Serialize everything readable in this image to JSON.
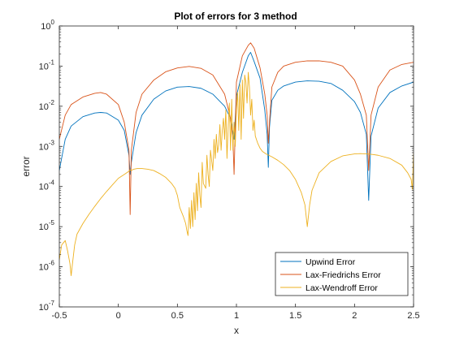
{
  "chart_data": {
    "type": "line",
    "title": "Plot of errors for 3 method",
    "xlabel": "x",
    "ylabel": "error",
    "xlim": [
      -0.5,
      2.5
    ],
    "ylim": [
      1e-07,
      1
    ],
    "yscale": "log",
    "grid": false,
    "legend_position": "bottom-right",
    "x_ticks": [
      {
        "value": -0.5,
        "label": "-0.5"
      },
      {
        "value": 0,
        "label": "0"
      },
      {
        "value": 0.5,
        "label": "0.5"
      },
      {
        "value": 1,
        "label": "1"
      },
      {
        "value": 1.5,
        "label": "1.5"
      },
      {
        "value": 2,
        "label": "2"
      },
      {
        "value": 2.5,
        "label": "2.5"
      }
    ],
    "y_ticks": [
      {
        "value": 1e-07,
        "base": "10",
        "exp": "-7"
      },
      {
        "value": 1e-06,
        "base": "10",
        "exp": "-6"
      },
      {
        "value": 1e-05,
        "base": "10",
        "exp": "-5"
      },
      {
        "value": 0.0001,
        "base": "10",
        "exp": "-4"
      },
      {
        "value": 0.001,
        "base": "10",
        "exp": "-3"
      },
      {
        "value": 0.01,
        "base": "10",
        "exp": "-2"
      },
      {
        "value": 0.1,
        "base": "10",
        "exp": "-1"
      },
      {
        "value": 1,
        "base": "10",
        "exp": "0"
      }
    ],
    "series": [
      {
        "name": "Upwind Error",
        "color": "#0072BD",
        "x": [
          -0.5,
          -0.45,
          -0.4,
          -0.3,
          -0.2,
          -0.15,
          -0.1,
          0.0,
          0.05,
          0.09,
          0.1,
          0.11,
          0.15,
          0.2,
          0.3,
          0.4,
          0.5,
          0.6,
          0.7,
          0.8,
          0.9,
          0.95,
          0.98,
          1.0,
          1.05,
          1.1,
          1.12,
          1.15,
          1.2,
          1.24,
          1.26,
          1.27,
          1.28,
          1.3,
          1.35,
          1.4,
          1.5,
          1.6,
          1.7,
          1.8,
          1.9,
          2.0,
          2.05,
          2.1,
          2.12,
          2.14,
          2.2,
          2.3,
          2.4,
          2.5
        ],
        "y": [
          0.00025,
          0.0015,
          0.0032,
          0.0055,
          0.0068,
          0.007,
          0.0068,
          0.0045,
          0.0025,
          0.0006,
          0.0002,
          0.0004,
          0.0022,
          0.006,
          0.015,
          0.024,
          0.03,
          0.031,
          0.028,
          0.02,
          0.01,
          0.005,
          0.0015,
          0.018,
          0.07,
          0.18,
          0.22,
          0.13,
          0.05,
          0.008,
          0.002,
          0.0003,
          0.003,
          0.014,
          0.025,
          0.032,
          0.04,
          0.043,
          0.042,
          0.037,
          0.025,
          0.013,
          0.007,
          0.002,
          4.5e-05,
          0.0018,
          0.009,
          0.022,
          0.032,
          0.04
        ]
      },
      {
        "name": "Lax-Friedrichs Error",
        "color": "#D95319",
        "x": [
          -0.5,
          -0.45,
          -0.4,
          -0.3,
          -0.2,
          -0.15,
          -0.1,
          0.0,
          0.05,
          0.09,
          0.1,
          0.11,
          0.15,
          0.2,
          0.3,
          0.4,
          0.5,
          0.6,
          0.7,
          0.8,
          0.9,
          0.95,
          0.97,
          0.98,
          1.0,
          1.05,
          1.1,
          1.12,
          1.15,
          1.2,
          1.24,
          1.26,
          1.27,
          1.28,
          1.3,
          1.35,
          1.4,
          1.5,
          1.6,
          1.7,
          1.8,
          1.9,
          2.0,
          2.05,
          2.1,
          2.12,
          2.14,
          2.2,
          2.3,
          2.4,
          2.5
        ],
        "y": [
          0.0015,
          0.006,
          0.011,
          0.017,
          0.021,
          0.022,
          0.02,
          0.011,
          0.004,
          0.0008,
          2e-05,
          0.0008,
          0.007,
          0.02,
          0.045,
          0.072,
          0.09,
          0.098,
          0.088,
          0.06,
          0.02,
          0.005,
          0.0015,
          0.0002,
          0.04,
          0.18,
          0.33,
          0.38,
          0.28,
          0.09,
          0.02,
          0.006,
          0.0012,
          0.004,
          0.03,
          0.07,
          0.1,
          0.125,
          0.135,
          0.135,
          0.125,
          0.1,
          0.045,
          0.02,
          0.006,
          0.00025,
          0.006,
          0.03,
          0.08,
          0.11,
          0.125
        ]
      },
      {
        "name": "Lax-Wendroff Error",
        "color": "#EDB120",
        "x": [
          -0.5,
          -0.48,
          -0.45,
          -0.43,
          -0.41,
          -0.4,
          -0.39,
          -0.37,
          -0.35,
          -0.3,
          -0.25,
          -0.2,
          -0.15,
          -0.1,
          -0.05,
          0.0,
          0.05,
          0.09,
          0.1,
          0.11,
          0.13,
          0.16,
          0.2,
          0.25,
          0.3,
          0.35,
          0.4,
          0.45,
          0.48,
          0.5,
          0.52,
          0.55,
          0.57,
          0.58,
          0.59,
          0.6,
          0.61,
          0.62,
          0.63,
          0.64,
          0.65,
          0.66,
          0.67,
          0.68,
          0.69,
          0.7,
          0.71,
          0.72,
          0.74,
          0.75,
          0.76,
          0.77,
          0.78,
          0.8,
          0.81,
          0.82,
          0.83,
          0.84,
          0.85,
          0.86,
          0.87,
          0.88,
          0.89,
          0.9,
          0.91,
          0.92,
          0.93,
          0.94,
          0.95,
          0.96,
          0.97,
          0.98,
          0.99,
          1.0,
          1.01,
          1.02,
          1.03,
          1.04,
          1.05,
          1.06,
          1.07,
          1.08,
          1.09,
          1.1,
          1.11,
          1.12,
          1.13,
          1.14,
          1.15,
          1.16,
          1.18,
          1.2,
          1.22,
          1.25,
          1.3,
          1.35,
          1.4,
          1.45,
          1.5,
          1.55,
          1.58,
          1.6,
          1.62,
          1.64,
          1.7,
          1.8,
          1.9,
          2.0,
          2.05,
          2.1,
          2.15,
          2.2,
          2.3,
          2.4,
          2.45,
          2.48,
          2.49,
          2.5
        ],
        "y": [
          1.5e-06,
          3.5e-06,
          4.5e-06,
          2.5e-06,
          1.2e-06,
          6e-07,
          1.1e-06,
          3.5e-06,
          6.5e-06,
          1.2e-05,
          2e-05,
          3.2e-05,
          5e-05,
          7.5e-05,
          0.00011,
          0.00016,
          0.0002,
          0.00024,
          0.00026,
          0.00025,
          0.00027,
          0.00028,
          0.00028,
          0.00027,
          0.00025,
          0.00021,
          0.00017,
          0.00012,
          9e-05,
          6e-05,
          3e-05,
          1.8e-05,
          1.2e-05,
          8e-06,
          6e-06,
          3e-05,
          9e-06,
          4.5e-05,
          1e-05,
          7e-05,
          1.5e-05,
          0.00012,
          2.5e-05,
          0.00022,
          6e-05,
          3e-05,
          0.0004,
          0.00012,
          9e-05,
          0.0006,
          0.0002,
          0.0001,
          0.0008,
          0.00025,
          0.0015,
          0.0005,
          0.002,
          0.0007,
          0.0011,
          0.0035,
          0.0008,
          0.0025,
          0.005,
          0.0015,
          0.008,
          0.0005,
          0.003,
          0.012,
          0.0008,
          0.015,
          0.0008,
          0.004,
          0.001,
          0.008,
          0.022,
          0.0025,
          0.035,
          0.0015,
          0.045,
          0.005,
          0.06,
          0.04,
          0.012,
          0.07,
          0.03,
          0.006,
          0.015,
          0.0025,
          0.0045,
          0.0018,
          0.0012,
          0.0009,
          0.00075,
          0.00065,
          0.00055,
          0.00045,
          0.00035,
          0.00025,
          0.00015,
          7e-05,
          3.5e-05,
          1e-05,
          3.5e-05,
          8e-05,
          0.00022,
          0.00042,
          0.00058,
          0.00065,
          0.00066,
          0.00065,
          0.00063,
          0.0006,
          0.0005,
          0.00034,
          0.00022,
          0.00015,
          8.5e-05,
          0.0007
        ]
      }
    ]
  }
}
